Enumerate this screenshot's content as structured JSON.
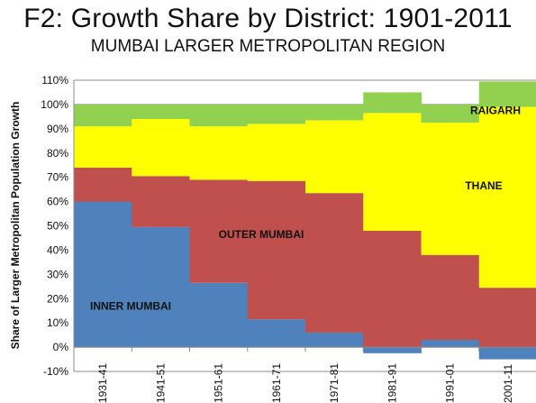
{
  "chart_data": {
    "type": "area",
    "title": "F2: Growth Share by District: 1901-2011",
    "subtitle": "MUMBAI LARGER METROPOLITAN REGION",
    "xlabel": "",
    "ylabel": "Share of Larger Metropolitan Population Growth",
    "ylim": [
      -10,
      110
    ],
    "yticks": [
      "-10%",
      "0%",
      "10%",
      "20%",
      "30%",
      "40%",
      "50%",
      "60%",
      "70%",
      "80%",
      "90%",
      "100%",
      "110%"
    ],
    "categories": [
      "1931-41",
      "1941-51",
      "1951-61",
      "1961-71",
      "1971-81",
      "1981-91",
      "1991-01",
      "2001-11"
    ],
    "series": [
      {
        "name": "INNER MUMBAI",
        "color": "#4F81BD",
        "values": [
          60,
          49.5,
          26.5,
          11.5,
          6,
          -2.5,
          3,
          -5
        ]
      },
      {
        "name": "OUTER MUMBAI",
        "color": "#C0504D",
        "values": [
          14,
          21,
          42.5,
          57,
          57.5,
          48,
          35,
          24.5
        ]
      },
      {
        "name": "THANE",
        "color": "#FFFF00",
        "values": [
          17,
          23.5,
          22,
          23.5,
          30,
          48.5,
          54.5,
          74.5
        ]
      },
      {
        "name": "RAIGARH",
        "color": "#92D050",
        "values": [
          9,
          6,
          9,
          8,
          6.5,
          8.5,
          7.5,
          10.5
        ]
      }
    ],
    "grid": true,
    "legend": "none"
  }
}
